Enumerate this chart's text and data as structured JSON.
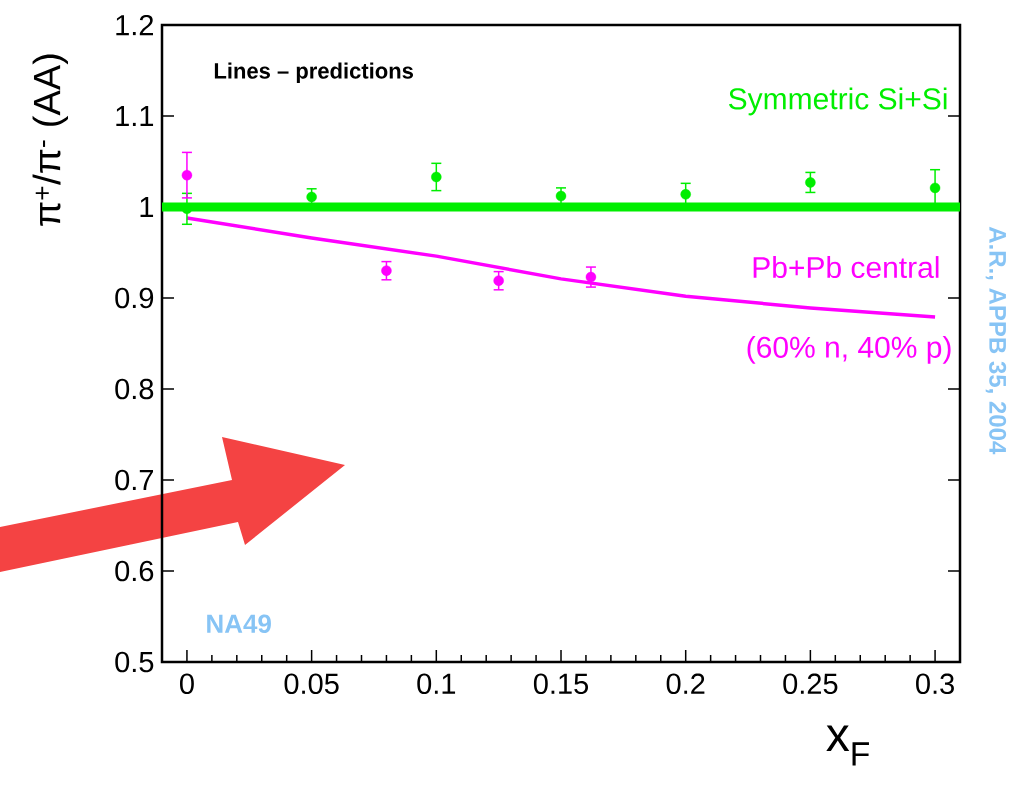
{
  "chart_data": {
    "type": "scatter",
    "xlabel": "x$_{F}$",
    "ylabel": "π$^{+}$/π$^{-}$ (AA)",
    "xlim": [
      -0.01,
      0.31
    ],
    "ylim": [
      0.5,
      1.2
    ],
    "xticks": [
      0,
      0.05,
      0.1,
      0.15,
      0.2,
      0.25,
      0.3
    ],
    "yticks": [
      0.5,
      0.6,
      0.7,
      0.8,
      0.9,
      1,
      1.1,
      1.2
    ],
    "series": [
      {
        "type": "line",
        "name": "Symmetric Si+Si",
        "color": "#00ee00",
        "x": [
          -0.01,
          0.31
        ],
        "values": [
          1,
          1
        ],
        "marker": "none",
        "line_style": "solid"
      },
      {
        "type": "line",
        "name": "Pb+Pb central",
        "color": "#ff00ff",
        "x": [
          0,
          0.05,
          0.1,
          0.15,
          0.2,
          0.25,
          0.3
        ],
        "values": [
          0.988,
          0.966,
          0.946,
          0.921,
          0.902,
          0.889,
          0.879
        ],
        "marker": "none",
        "line_style": "solid"
      },
      {
        "type": "scatter",
        "marker": "circle",
        "color": "#00ee00",
        "x": [
          0,
          0.05,
          0.1,
          0.15,
          0.2,
          0.25,
          0.3
        ],
        "values": [
          0.998,
          1.011,
          1.033,
          1.012,
          1.014,
          1.027,
          1.021
        ],
        "errors": [
          0.017,
          0.009,
          0.015,
          0.009,
          0.012,
          0.011,
          0.02
        ]
      },
      {
        "type": "scatter",
        "marker": "circle",
        "color": "#ff00ff",
        "x": [
          0,
          0.08,
          0.125,
          0.162
        ],
        "values": [
          1.035,
          0.93,
          0.919,
          0.923
        ],
        "errors": [
          0.025,
          0.01,
          0.01,
          0.011
        ]
      }
    ],
    "annotations": [
      "Lines – predictions",
      "(60% n, 40% p)",
      "NA49",
      "A.R., APPB 35, 2004"
    ]
  }
}
